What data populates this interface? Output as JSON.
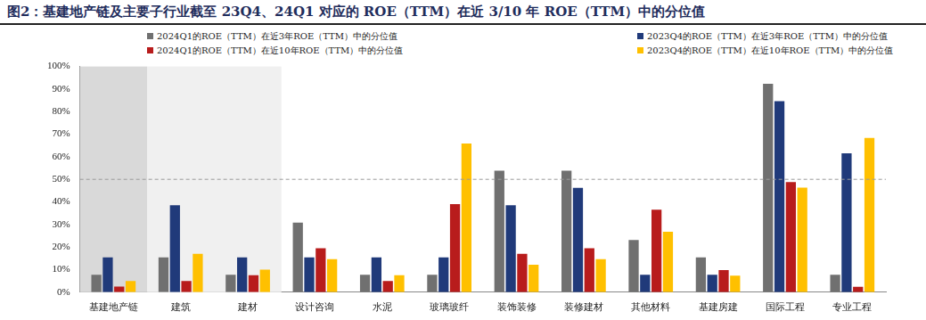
{
  "chart_data": {
    "type": "bar",
    "title": "图2：基建地产链及主要子行业截至 23Q4、24Q1 对应的 ROE（TTM）在近 3/10 年 ROE（TTM）中的分位值",
    "categories": [
      "基建地产链",
      "建筑",
      "建材",
      "设计咨询",
      "水泥",
      "玻璃玻纤",
      "装饰装修",
      "装修建材",
      "其他材料",
      "基建房建",
      "国际工程",
      "专业工程"
    ],
    "series": [
      {
        "name": "2024Q1的ROE（TTM）在近3年ROE（TTM）中的分位值",
        "color": "#707070",
        "values": [
          7.7,
          15.4,
          7.7,
          30.8,
          7.7,
          7.7,
          53.8,
          53.8,
          23.1,
          15.4,
          92.3,
          7.7
        ]
      },
      {
        "name": "2023Q4的ROE（TTM）在近3年ROE（TTM）中的分位值",
        "color": "#203a7a",
        "values": [
          15.4,
          38.5,
          15.4,
          15.4,
          15.4,
          15.4,
          38.5,
          46.2,
          7.7,
          7.7,
          84.6,
          61.5
        ]
      },
      {
        "name": "2024Q1的ROE（TTM）在近10年ROE（TTM）中的分位值",
        "color": "#b81c1c",
        "values": [
          2.5,
          5,
          7.5,
          19.5,
          5,
          39,
          17,
          19.5,
          36.6,
          9.8,
          48.8,
          2.4
        ]
      },
      {
        "name": "2023Q4的ROE（TTM）在近10年ROE（TTM）中的分位值",
        "color": "#ffc000",
        "values": [
          5,
          17,
          10,
          14.6,
          7.5,
          65.9,
          12.2,
          14.6,
          26.8,
          7.3,
          46.3,
          68.3
        ]
      }
    ],
    "ylim": [
      0,
      100
    ],
    "yticks": [
      {
        "value": 0,
        "label": "0%"
      },
      {
        "value": 10,
        "label": "10%"
      },
      {
        "value": 20,
        "label": "20%"
      },
      {
        "value": 30,
        "label": "30%"
      },
      {
        "value": 40,
        "label": "40%"
      },
      {
        "value": 50,
        "label": "50%"
      },
      {
        "value": 60,
        "label": "60%"
      },
      {
        "value": 70,
        "label": "70%"
      },
      {
        "value": 80,
        "label": "80%"
      },
      {
        "value": 90,
        "label": "90%"
      },
      {
        "value": 100,
        "label": "100%"
      }
    ],
    "reference_line": 50,
    "highlight": [
      {
        "from": "基建地产链",
        "to": "基建地产链",
        "color": "#d9d9d9"
      },
      {
        "from": "建筑",
        "to": "建材",
        "color": "#f0f0f0"
      }
    ],
    "grid": false,
    "legend": "top",
    "data_labels": false
  }
}
